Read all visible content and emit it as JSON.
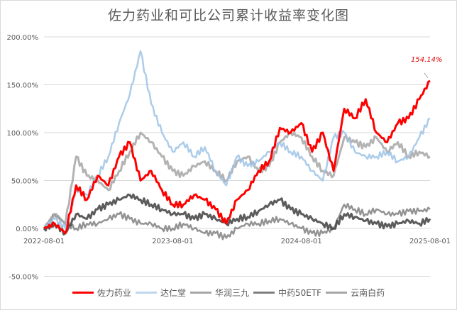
{
  "chart_data": {
    "type": "line",
    "title": "佐力药业和可比公司累计收益率变化图",
    "xlabel": "",
    "ylabel": "",
    "ylim": [
      -50,
      200
    ],
    "y_ticks": [
      "200.00%",
      "150.00%",
      "100.00%",
      "50.00%",
      "0.00%",
      "-50.00%"
    ],
    "x_ticks": [
      "2022-08-01",
      "2023-08-01",
      "2024-08-01",
      "2025-08-01"
    ],
    "grid": "horizontal",
    "legend_position": "bottom",
    "x": [
      "2022-08",
      "2022-09",
      "2022-10",
      "2022-11",
      "2022-12",
      "2023-01",
      "2023-02",
      "2023-03",
      "2023-04",
      "2023-05",
      "2023-06",
      "2023-07",
      "2023-08",
      "2023-09",
      "2023-10",
      "2023-11",
      "2023-12",
      "2024-01",
      "2024-02",
      "2024-03",
      "2024-04",
      "2024-05",
      "2024-06",
      "2024-07",
      "2024-08",
      "2024-09",
      "2024-10",
      "2024-11",
      "2024-12",
      "2025-01",
      "2025-02",
      "2025-03",
      "2025-04",
      "2025-05",
      "2025-06",
      "2025-07",
      "2025-08"
    ],
    "series": [
      {
        "name": "佐力药业",
        "color": "#ff0000",
        "values": [
          0,
          5,
          -5,
          45,
          30,
          55,
          45,
          75,
          90,
          50,
          60,
          40,
          25,
          25,
          35,
          30,
          20,
          5,
          30,
          40,
          60,
          70,
          105,
          100,
          110,
          80,
          100,
          60,
          125,
          115,
          135,
          100,
          90,
          110,
          115,
          135,
          154.14
        ]
      },
      {
        "name": "达仁堂",
        "color": "#9dc3e6",
        "values": [
          0,
          10,
          0,
          40,
          35,
          55,
          75,
          110,
          140,
          185,
          130,
          100,
          80,
          90,
          75,
          85,
          60,
          45,
          75,
          65,
          70,
          80,
          90,
          80,
          75,
          60,
          50,
          95,
          100,
          80,
          75,
          75,
          80,
          70,
          75,
          95,
          115
        ]
      },
      {
        "name": "华润三九",
        "color": "#a6a6a6",
        "values": [
          0,
          15,
          5,
          75,
          55,
          50,
          40,
          60,
          80,
          100,
          90,
          75,
          60,
          55,
          65,
          70,
          60,
          50,
          70,
          75,
          60,
          65,
          90,
          100,
          95,
          75,
          60,
          55,
          95,
          90,
          85,
          95,
          80,
          90,
          75,
          80,
          75
        ]
      },
      {
        "name": "中药50ETF",
        "color": "#404040",
        "values": [
          0,
          5,
          -5,
          15,
          10,
          20,
          25,
          30,
          35,
          30,
          25,
          20,
          15,
          15,
          10,
          15,
          10,
          5,
          10,
          12,
          18,
          25,
          30,
          20,
          15,
          10,
          5,
          0,
          15,
          12,
          8,
          5,
          2,
          5,
          8,
          5,
          10
        ]
      },
      {
        "name": "云南白药",
        "color": "#808080",
        "values": [
          0,
          15,
          5,
          0,
          5,
          5,
          10,
          15,
          10,
          5,
          5,
          0,
          0,
          5,
          0,
          -5,
          -5,
          -10,
          0,
          5,
          5,
          8,
          10,
          5,
          0,
          -5,
          -5,
          0,
          25,
          20,
          15,
          20,
          15,
          15,
          18,
          18,
          20
        ]
      }
    ],
    "annotations": [
      {
        "text": "154.14%",
        "series": "佐力药业",
        "x": "2025-08",
        "y": 154.14
      }
    ]
  },
  "page": {
    "title": "佐力药业和可比公司累计收益率变化图",
    "annotation": "154.14%",
    "legend": [
      "佐力药业",
      "达仁堂",
      "华润三九",
      "中药50ETF",
      "云南白药"
    ]
  }
}
